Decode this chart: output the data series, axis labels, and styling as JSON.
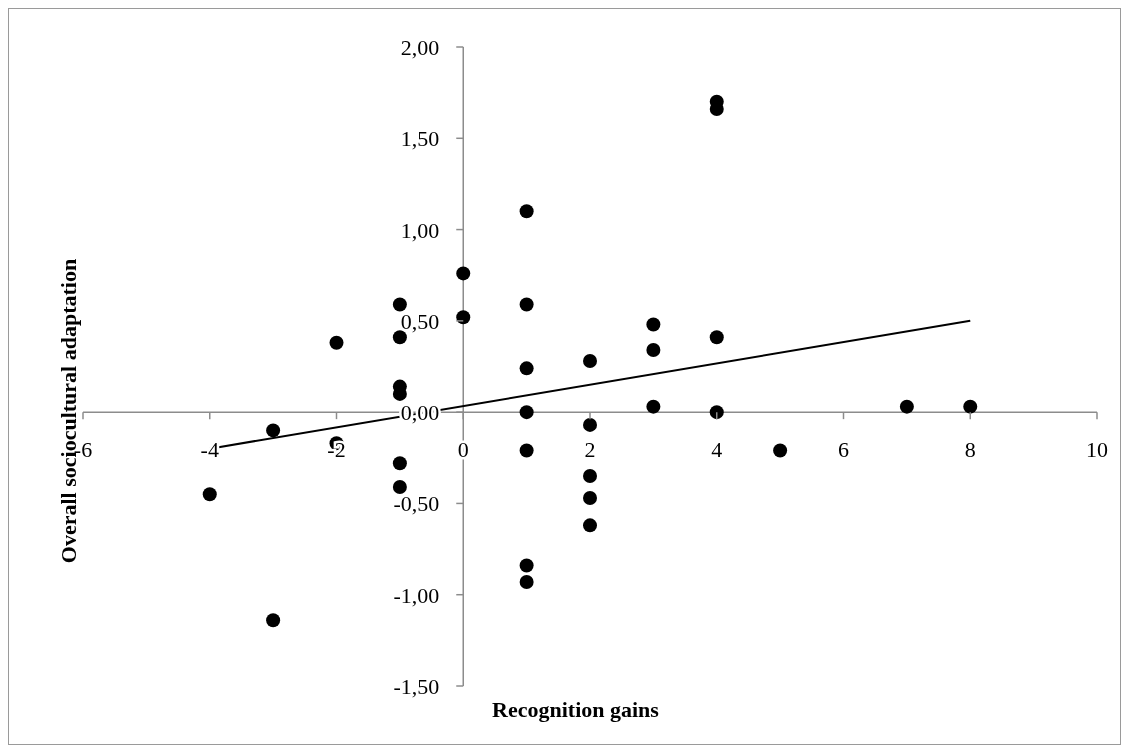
{
  "chart_data": {
    "type": "scatter",
    "xlabel": "Recognition gains",
    "ylabel": "Overall sociocultural adaptation",
    "xlim": [
      -6,
      10
    ],
    "xticks": [
      -6,
      -4,
      -2,
      0,
      2,
      4,
      6,
      8,
      10
    ],
    "ylim": [
      -1.5,
      2
    ],
    "yticks": [
      {
        "value": -1.5,
        "label": "-1,50"
      },
      {
        "value": -1,
        "label": "-1,00"
      },
      {
        "value": -0.5,
        "label": "-0,50"
      },
      {
        "value": 0,
        "label": "0,00"
      },
      {
        "value": 0.5,
        "label": "0,50"
      },
      {
        "value": 1,
        "label": "1,00"
      },
      {
        "value": 1.5,
        "label": "1,50"
      },
      {
        "value": 2,
        "label": "2,00"
      }
    ],
    "marker": "circle",
    "grid": false,
    "series": [
      {
        "color": "#000000",
        "x": [
          -4,
          -3,
          -3,
          -2,
          -2,
          -1,
          -1,
          -1,
          -1,
          -1,
          -1,
          0,
          0,
          1,
          1,
          1,
          1,
          1,
          1,
          1,
          2,
          2,
          2,
          2,
          2,
          3,
          3,
          3,
          4,
          4,
          4,
          4,
          5,
          7,
          8
        ],
        "values": [
          -0.45,
          -0.1,
          -1.14,
          0.38,
          -0.17,
          0.59,
          0.41,
          0.14,
          0.1,
          -0.28,
          -0.41,
          0.76,
          0.52,
          1.1,
          0.59,
          0.24,
          0,
          -0.21,
          -0.84,
          -0.93,
          0.28,
          -0.07,
          -0.35,
          -0.47,
          -0.62,
          0.48,
          0.34,
          0.03,
          1.7,
          1.66,
          0.41,
          0,
          -0.21,
          0.03,
          0.03
        ]
      },
      {
        "type": "line",
        "color": "#000000",
        "marker": "none",
        "x": [
          -4,
          8
        ],
        "values": [
          -0.2,
          0.5
        ]
      }
    ]
  }
}
